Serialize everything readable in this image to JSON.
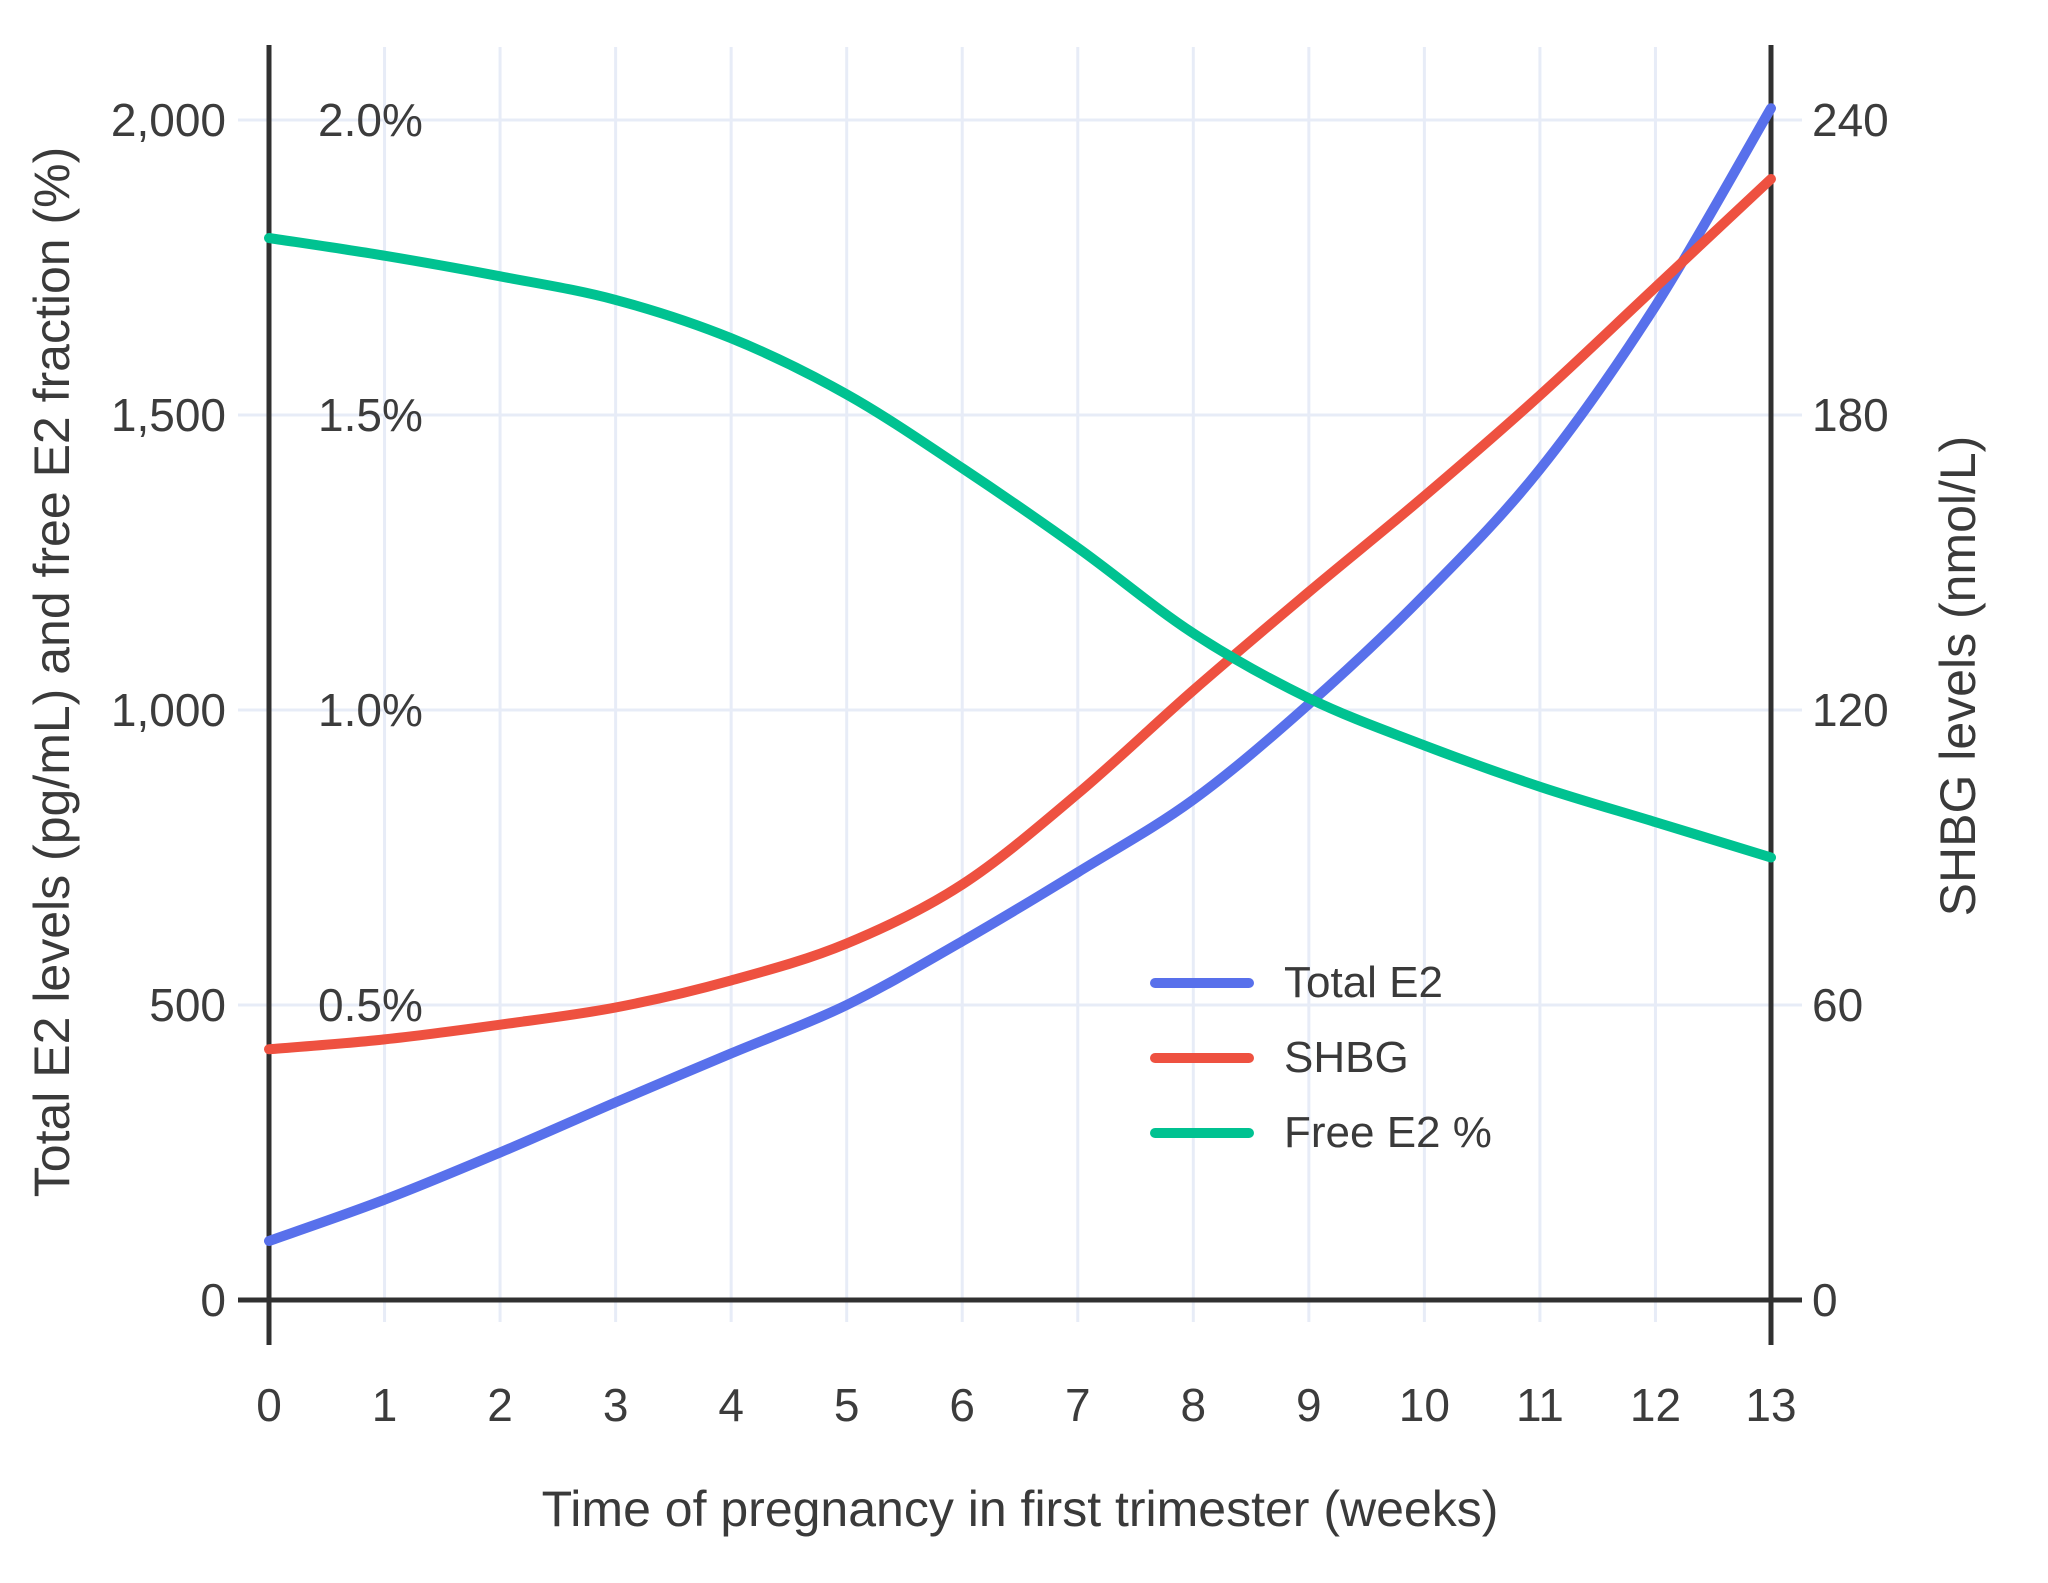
{
  "chart_data": {
    "type": "line",
    "title": "",
    "x_label": "Time of pregnancy in first trimester (weeks)",
    "y_left_label": "Total E2 levels (pg/mL) and free E2 fraction (%)",
    "y_right_label": "SHBG levels (nmol/L)",
    "x": [
      0,
      1,
      2,
      3,
      4,
      5,
      6,
      7,
      8,
      9,
      10,
      11,
      12,
      13
    ],
    "x_ticks": [
      "0",
      "1",
      "2",
      "3",
      "4",
      "5",
      "6",
      "7",
      "8",
      "9",
      "10",
      "11",
      "12",
      "13"
    ],
    "x_range": [
      0,
      13
    ],
    "y_left_range": [
      0,
      2000
    ],
    "y_right_range": [
      0,
      240
    ],
    "y_percent_range": [
      0,
      2.0
    ],
    "y_left_ticks": [
      {
        "value": 0,
        "label": "0"
      },
      {
        "value": 500,
        "label": "500"
      },
      {
        "value": 1000,
        "label": "1,000"
      },
      {
        "value": 1500,
        "label": "1,500"
      },
      {
        "value": 2000,
        "label": "2,000"
      }
    ],
    "y_percent_ticks": [
      {
        "value": 0.5,
        "label": "0.5%"
      },
      {
        "value": 1.0,
        "label": "1.0%"
      },
      {
        "value": 1.5,
        "label": "1.5%"
      },
      {
        "value": 2.0,
        "label": "2.0%"
      }
    ],
    "y_right_ticks": [
      {
        "value": 0,
        "label": "0"
      },
      {
        "value": 60,
        "label": "60"
      },
      {
        "value": 120,
        "label": "120"
      },
      {
        "value": 180,
        "label": "180"
      },
      {
        "value": 240,
        "label": "240"
      }
    ],
    "grid": true,
    "legend_position": "middle-right",
    "series": [
      {
        "name": "Total E2",
        "axis": "left",
        "unit": "pg/mL",
        "color": "#5870EB",
        "values": [
          100,
          170,
          250,
          335,
          418,
          500,
          608,
          725,
          848,
          1010,
          1195,
          1408,
          1685,
          2020
        ]
      },
      {
        "name": "SHBG",
        "axis": "right",
        "unit": "nmol/L",
        "color": "#EE5140",
        "values": [
          51,
          53,
          56,
          59.5,
          65,
          72.5,
          84.5,
          103,
          124,
          144,
          163.5,
          184,
          206,
          228
        ]
      },
      {
        "name": "Free E2 %",
        "axis": "percent",
        "unit": "%",
        "color": "#00C291",
        "values": [
          1.8,
          1.77,
          1.735,
          1.695,
          1.63,
          1.535,
          1.41,
          1.275,
          1.13,
          1.02,
          0.94,
          0.87,
          0.81,
          0.75
        ]
      }
    ]
  },
  "legend": {
    "entries": [
      "Total E2",
      "SHBG",
      "Free E2 %"
    ]
  },
  "colors": {
    "background": "#FFFFFF",
    "grid": "#E7ECF7",
    "axis": "#303030",
    "tick_text": "#3C3C3C",
    "title_text": "#3A3A3A",
    "total_e2": "#5870EB",
    "shbg": "#EE5140",
    "free_e2": "#00C291"
  }
}
